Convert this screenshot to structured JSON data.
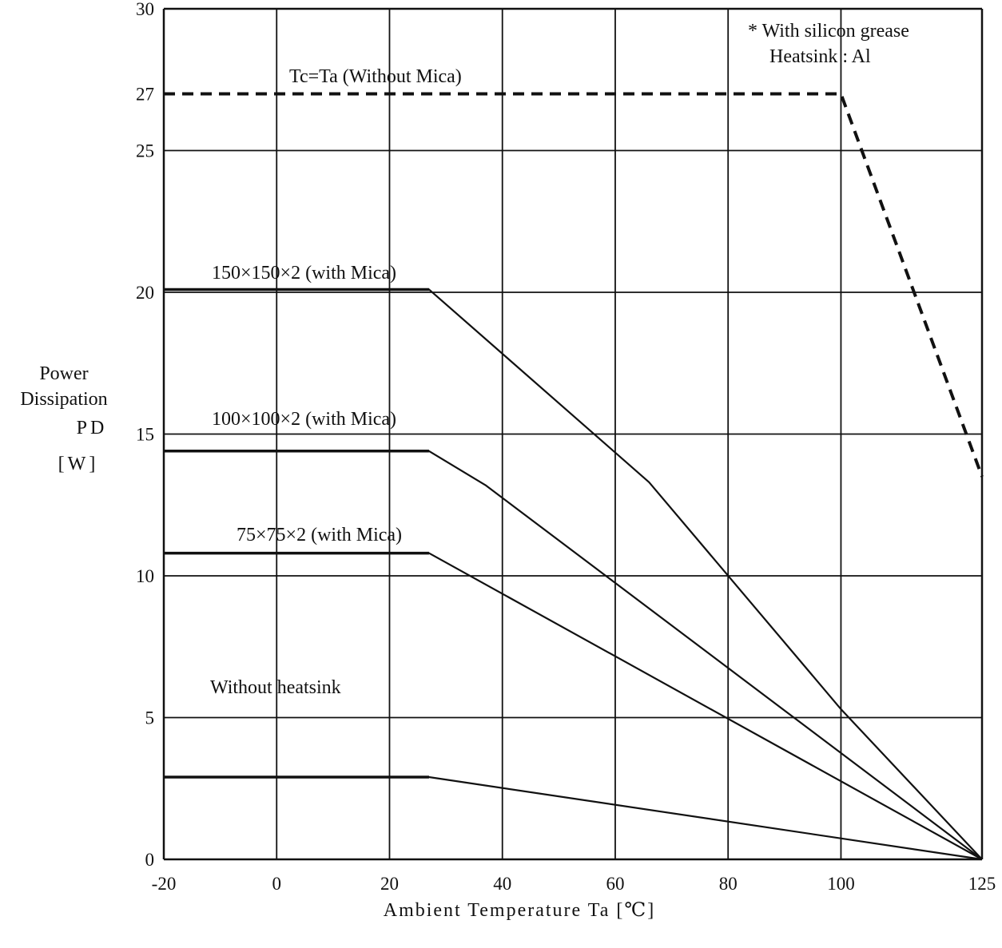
{
  "chart_data": {
    "type": "line",
    "title": "",
    "xlabel": "Ambient Temperature Ta [℃]",
    "ylabel_lines": [
      "Power",
      "Dissipation",
      "PD",
      "[W]"
    ],
    "x_ticks": [
      -20,
      0,
      20,
      40,
      60,
      80,
      100,
      125
    ],
    "y_ticks": [
      0,
      5,
      10,
      15,
      20,
      25,
      27,
      30
    ],
    "xlim": [
      -20,
      125
    ],
    "ylim": [
      0,
      30
    ],
    "grid": true,
    "notes": [
      "* With silicon grease",
      "Heatsink : Al"
    ],
    "series": [
      {
        "name": "Tc=Ta (Without Mica)",
        "style": "dashed",
        "x": [
          -20,
          100,
          125
        ],
        "y": [
          27,
          27,
          13.5
        ]
      },
      {
        "name": "150×150×2 (with Mica)",
        "style": "solid",
        "x": [
          -20,
          27,
          66,
          100,
          125
        ],
        "y": [
          20.1,
          20.1,
          13.3,
          5.3,
          0
        ]
      },
      {
        "name": "100×100×2 (with Mica)",
        "style": "solid",
        "x": [
          -20,
          27,
          37,
          125
        ],
        "y": [
          14.4,
          14.4,
          13.2,
          0
        ]
      },
      {
        "name": "75×75×2 (with Mica)",
        "style": "solid",
        "x": [
          -20,
          27,
          125
        ],
        "y": [
          10.8,
          10.8,
          0
        ]
      },
      {
        "name": "Without heatsink",
        "style": "solid",
        "x": [
          -20,
          27,
          125
        ],
        "y": [
          2.9,
          2.9,
          0
        ]
      }
    ]
  }
}
